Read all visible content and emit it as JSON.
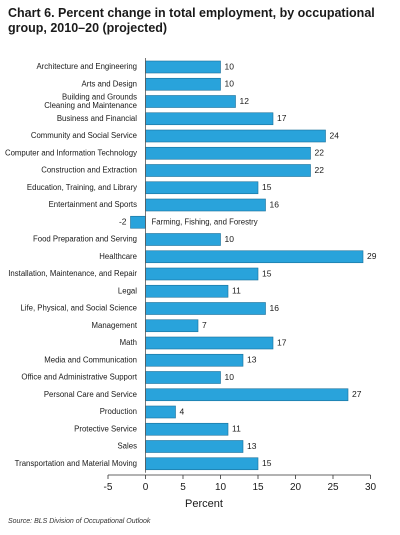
{
  "chart_data": {
    "type": "bar",
    "orientation": "horizontal",
    "title": "Chart 6. Percent change in total employment, by occupational group, 2010–20 (projected)",
    "xlabel": "Percent",
    "ylabel": "",
    "xlim": [
      -5,
      30
    ],
    "xticks": [
      -5,
      0,
      5,
      10,
      15,
      20,
      25,
      30
    ],
    "grid": false,
    "bar_color": "#29a3db",
    "categories": [
      "Architecture and Engineering",
      "Arts and Design",
      "Building and Grounds\nCleaning and Maintenance",
      "Business and Financial",
      "Community and Social Service",
      "Computer and Information Technology",
      "Construction and Extraction",
      "Education, Training, and Library",
      "Entertainment and Sports",
      "Farming, Fishing, and Forestry",
      "Food Preparation and Serving",
      "Healthcare",
      "Installation, Maintenance, and Repair",
      "Legal",
      "Life, Physical, and Social Science",
      "Management",
      "Math",
      "Media and Communication",
      "Office and Administrative Support",
      "Personal Care and Service",
      "Production",
      "Protective Service",
      "Sales",
      "Transportation and Material Moving"
    ],
    "values": [
      10,
      10,
      12,
      17,
      24,
      22,
      22,
      15,
      16,
      -2,
      10,
      29,
      15,
      11,
      16,
      7,
      17,
      13,
      10,
      27,
      4,
      11,
      13,
      15
    ],
    "source": "Source: BLS Division of Occupational Outlook"
  }
}
